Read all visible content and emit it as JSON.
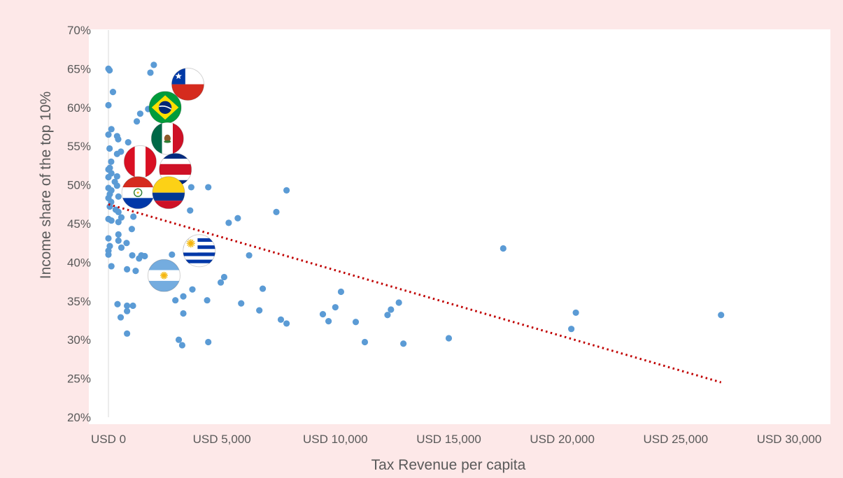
{
  "colors": {
    "background": "#fde8e8",
    "plot_background": "#ffffff",
    "points": "#5b9bd5",
    "trendline": "#c00000",
    "axis_text": "#595959"
  },
  "chart_data": {
    "type": "scatter",
    "title": "",
    "xlabel": "Tax Revenue per capita",
    "ylabel": "Income share of the top 10%",
    "xlim": [
      0,
      30000
    ],
    "ylim": [
      20,
      70
    ],
    "x_ticks": [
      0,
      5000,
      10000,
      15000,
      20000,
      25000,
      30000
    ],
    "x_tick_labels": [
      "USD 0",
      "USD 5,000",
      "USD 10,000",
      "USD 15,000",
      "USD 20,000",
      "USD 25,000",
      "USD 30,000"
    ],
    "y_ticks": [
      20,
      25,
      30,
      35,
      40,
      45,
      50,
      55,
      60,
      65,
      70
    ],
    "y_tick_labels": [
      "20%",
      "25%",
      "30%",
      "35%",
      "40%",
      "45%",
      "50%",
      "55%",
      "60%",
      "65%",
      "70%"
    ],
    "grid": false,
    "legend": "none",
    "trendline": {
      "style": "dotted",
      "x": [
        0,
        27000
      ],
      "y": [
        47.5,
        24.5
      ]
    },
    "series": [
      {
        "points": [
          {
            "x": 0,
            "y": 65
          },
          {
            "x": 50,
            "y": 64.8
          },
          {
            "x": 200,
            "y": 62
          },
          {
            "x": 0,
            "y": 60.3
          },
          {
            "x": 2000,
            "y": 65.5
          },
          {
            "x": 1850,
            "y": 64.5
          },
          {
            "x": 1400,
            "y": 59.2
          },
          {
            "x": 1750,
            "y": 59.8
          },
          {
            "x": 1250,
            "y": 58.2
          },
          {
            "x": 130,
            "y": 57.2
          },
          {
            "x": 0,
            "y": 56.5
          },
          {
            "x": 380,
            "y": 56.3
          },
          {
            "x": 430,
            "y": 55.9
          },
          {
            "x": 870,
            "y": 55.5
          },
          {
            "x": 50,
            "y": 54.7
          },
          {
            "x": 550,
            "y": 54.3
          },
          {
            "x": 380,
            "y": 54
          },
          {
            "x": 120,
            "y": 53
          },
          {
            "x": 60,
            "y": 52.2
          },
          {
            "x": 0,
            "y": 52
          },
          {
            "x": 130,
            "y": 51.5
          },
          {
            "x": 380,
            "y": 51.1
          },
          {
            "x": 0,
            "y": 51
          },
          {
            "x": 280,
            "y": 50.4
          },
          {
            "x": 380,
            "y": 49.9
          },
          {
            "x": 0,
            "y": 49.6
          },
          {
            "x": 130,
            "y": 49.3
          },
          {
            "x": 60,
            "y": 48.8
          },
          {
            "x": 440,
            "y": 48.5
          },
          {
            "x": 0,
            "y": 48.3
          },
          {
            "x": 120,
            "y": 47.8
          },
          {
            "x": 60,
            "y": 47.2
          },
          {
            "x": 320,
            "y": 46.8
          },
          {
            "x": 440,
            "y": 46.5
          },
          {
            "x": 0,
            "y": 45.6
          },
          {
            "x": 130,
            "y": 45.4
          },
          {
            "x": 440,
            "y": 45.2
          },
          {
            "x": 570,
            "y": 45.8
          },
          {
            "x": 1100,
            "y": 45.9
          },
          {
            "x": 1030,
            "y": 44.3
          },
          {
            "x": 0,
            "y": 43.1
          },
          {
            "x": 440,
            "y": 43.6
          },
          {
            "x": 440,
            "y": 42.8
          },
          {
            "x": 800,
            "y": 42.5
          },
          {
            "x": 60,
            "y": 42.1
          },
          {
            "x": 570,
            "y": 41.9
          },
          {
            "x": 0,
            "y": 41.5
          },
          {
            "x": 0,
            "y": 41
          },
          {
            "x": 1050,
            "y": 40.9
          },
          {
            "x": 1450,
            "y": 40.9
          },
          {
            "x": 1600,
            "y": 40.8
          },
          {
            "x": 1350,
            "y": 40.5
          },
          {
            "x": 130,
            "y": 39.5
          },
          {
            "x": 820,
            "y": 39.1
          },
          {
            "x": 1200,
            "y": 38.9
          },
          {
            "x": 400,
            "y": 34.6
          },
          {
            "x": 820,
            "y": 34.4
          },
          {
            "x": 1080,
            "y": 34.4
          },
          {
            "x": 820,
            "y": 33.7
          },
          {
            "x": 540,
            "y": 32.9
          },
          {
            "x": 820,
            "y": 30.8
          },
          {
            "x": 3350,
            "y": 52.2
          },
          {
            "x": 4400,
            "y": 49.7
          },
          {
            "x": 3650,
            "y": 49.7
          },
          {
            "x": 3600,
            "y": 46.7
          },
          {
            "x": 2800,
            "y": 41
          },
          {
            "x": 3700,
            "y": 36.5
          },
          {
            "x": 3300,
            "y": 35.6
          },
          {
            "x": 2950,
            "y": 35.1
          },
          {
            "x": 4350,
            "y": 35.1
          },
          {
            "x": 3300,
            "y": 33.4
          },
          {
            "x": 3100,
            "y": 30
          },
          {
            "x": 3250,
            "y": 29.3
          },
          {
            "x": 4400,
            "y": 29.7
          },
          {
            "x": 5300,
            "y": 45.1
          },
          {
            "x": 5700,
            "y": 45.7
          },
          {
            "x": 5100,
            "y": 38.1
          },
          {
            "x": 4950,
            "y": 37.4
          },
          {
            "x": 6200,
            "y": 40.9
          },
          {
            "x": 5850,
            "y": 34.7
          },
          {
            "x": 6800,
            "y": 36.6
          },
          {
            "x": 7850,
            "y": 49.3
          },
          {
            "x": 7400,
            "y": 46.5
          },
          {
            "x": 6650,
            "y": 33.8
          },
          {
            "x": 7600,
            "y": 32.6
          },
          {
            "x": 7850,
            "y": 32.1
          },
          {
            "x": 10250,
            "y": 36.2
          },
          {
            "x": 10000,
            "y": 34.2
          },
          {
            "x": 9450,
            "y": 33.3
          },
          {
            "x": 9700,
            "y": 32.4
          },
          {
            "x": 10900,
            "y": 32.3
          },
          {
            "x": 11300,
            "y": 29.7
          },
          {
            "x": 12800,
            "y": 34.8
          },
          {
            "x": 12450,
            "y": 33.9
          },
          {
            "x": 12300,
            "y": 33.2
          },
          {
            "x": 13000,
            "y": 29.5
          },
          {
            "x": 15000,
            "y": 30.2
          },
          {
            "x": 17400,
            "y": 41.8
          },
          {
            "x": 20600,
            "y": 33.5
          },
          {
            "x": 20400,
            "y": 31.4
          },
          {
            "x": 27000,
            "y": 33.2
          }
        ]
      }
    ],
    "flag_markers": [
      {
        "flag": "chile-flag-icon",
        "x": 3500,
        "y": 63
      },
      {
        "flag": "brazil-flag-icon",
        "x": 2500,
        "y": 60
      },
      {
        "flag": "mexico-flag-icon",
        "x": 2600,
        "y": 56
      },
      {
        "flag": "peru-flag-icon",
        "x": 1400,
        "y": 53
      },
      {
        "flag": "costa-rica-flag-icon",
        "x": 2950,
        "y": 52
      },
      {
        "flag": "paraguay-flag-icon",
        "x": 1300,
        "y": 49
      },
      {
        "flag": "colombia-flag-icon",
        "x": 2650,
        "y": 49
      },
      {
        "flag": "uruguay-flag-icon",
        "x": 4000,
        "y": 41.5
      },
      {
        "flag": "argentina-flag-icon",
        "x": 2450,
        "y": 38.3
      }
    ]
  }
}
